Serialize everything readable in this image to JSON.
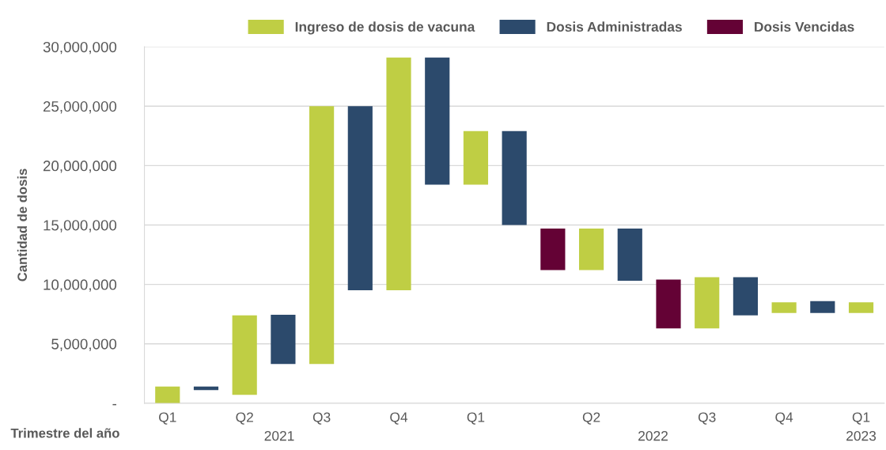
{
  "chart_data": {
    "type": "bar",
    "categories": [
      "Q1",
      null,
      "Q2",
      null,
      "Q3",
      null,
      "Q4",
      null,
      "Q1",
      null,
      null,
      "Q2",
      null,
      null,
      "Q3",
      null,
      "Q4",
      null,
      "Q1"
    ],
    "series": [
      {
        "name": "Ingreso de dosis de vacuna",
        "color": "#bfce44",
        "values": [
          1400000,
          null,
          6700000,
          null,
          21700000,
          null,
          19600000,
          null,
          4500000,
          null,
          null,
          3500000,
          null,
          null,
          4300000,
          null,
          900000,
          null,
          900000
        ],
        "base": [
          0,
          null,
          700000,
          null,
          3300000,
          null,
          9500000,
          null,
          18400000,
          null,
          null,
          11200000,
          null,
          null,
          6300000,
          null,
          7600000,
          null,
          7600000
        ]
      },
      {
        "name": "Dosis Administradas",
        "color": "#2c4a6c",
        "values": [
          null,
          300000,
          null,
          4150000,
          null,
          15500000,
          null,
          10700000,
          null,
          7900000,
          null,
          null,
          4400000,
          null,
          null,
          3200000,
          null,
          1000000,
          null
        ],
        "base": [
          null,
          1100000,
          null,
          3300000,
          null,
          9500000,
          null,
          18400000,
          null,
          15000000,
          null,
          null,
          10300000,
          null,
          null,
          7400000,
          null,
          7600000,
          null
        ]
      },
      {
        "name": "Dosis Vencidas",
        "color": "#640235",
        "values": [
          null,
          null,
          null,
          null,
          null,
          null,
          null,
          null,
          null,
          null,
          3500000,
          null,
          null,
          4100000,
          null,
          null,
          null,
          null,
          null
        ],
        "base": [
          null,
          null,
          null,
          null,
          null,
          null,
          null,
          null,
          null,
          null,
          11200000,
          null,
          null,
          6300000,
          null,
          null,
          null,
          null,
          null
        ]
      }
    ],
    "ylabel": "Cantidad de dosis",
    "xlabel": "Trimestre del año",
    "ylim": [
      0,
      30000000
    ],
    "yticks": [
      {
        "value": 0,
        "label": "-"
      },
      {
        "value": 5000000,
        "label": "5,000,000"
      },
      {
        "value": 10000000,
        "label": "10,000,000"
      },
      {
        "value": 15000000,
        "label": "15,000,000"
      },
      {
        "value": 20000000,
        "label": "20,000,000"
      },
      {
        "value": 25000000,
        "label": "25,000,000"
      },
      {
        "value": 30000000,
        "label": "30,000,000"
      }
    ],
    "grid": "y",
    "legend": "top",
    "annotations": [
      "2021",
      "2022",
      "2023"
    ]
  }
}
